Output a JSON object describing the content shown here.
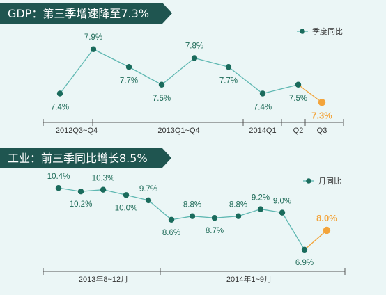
{
  "colors": {
    "banner": "#1f5550",
    "line": "#5fb8b2",
    "point": "#1a6b5c",
    "highlight": "#f3a43b",
    "axis": "#555555",
    "background": "#ebf6f6"
  },
  "chart_data": [
    {
      "type": "line",
      "title": "GDP：第三季增速降至7.3%",
      "legend": "季度同比",
      "legend_position": "top-right",
      "unit": "%",
      "series": [
        {
          "name": "季度同比",
          "values": [
            7.4,
            7.9,
            7.7,
            7.5,
            7.8,
            7.7,
            7.4,
            7.5,
            7.3
          ],
          "labels": [
            "7.4%",
            "7.9%",
            "7.7%",
            "7.5%",
            "7.8%",
            "7.7%",
            "7.4%",
            "7.5%",
            "7.3%"
          ],
          "highlight_index": 8
        }
      ],
      "ylim": [
        7.2,
        8.0
      ],
      "periods": [
        "2012Q3~Q4",
        "2013Q1~Q4",
        "2014Q1",
        "Q2",
        "Q3"
      ],
      "period_spans": [
        [
          0,
          1
        ],
        [
          2,
          5
        ],
        [
          6,
          6
        ],
        [
          7,
          7
        ],
        [
          8,
          8
        ]
      ]
    },
    {
      "type": "line",
      "title": "工业：前三季同比增长8.5%",
      "legend": "月同比",
      "legend_position": "top-right",
      "unit": "%",
      "series": [
        {
          "name": "月同比",
          "values": [
            10.4,
            10.2,
            10.3,
            10.0,
            9.7,
            8.6,
            8.8,
            8.7,
            8.8,
            9.2,
            9.0,
            6.9,
            8.0
          ],
          "labels": [
            "10.4%",
            "10.2%",
            "10.3%",
            "10.0%",
            "9.7%",
            "8.6%",
            "8.8%",
            "8.7%",
            "8.8%",
            "9.2%",
            "9.0%",
            "6.9%",
            "8.0%"
          ],
          "highlight_index": 12
        }
      ],
      "ylim": [
        6.5,
        10.8
      ],
      "periods": [
        "2013年8~12月",
        "2014年1~9月"
      ],
      "period_spans": [
        [
          0,
          4
        ],
        [
          5,
          12
        ]
      ]
    }
  ]
}
